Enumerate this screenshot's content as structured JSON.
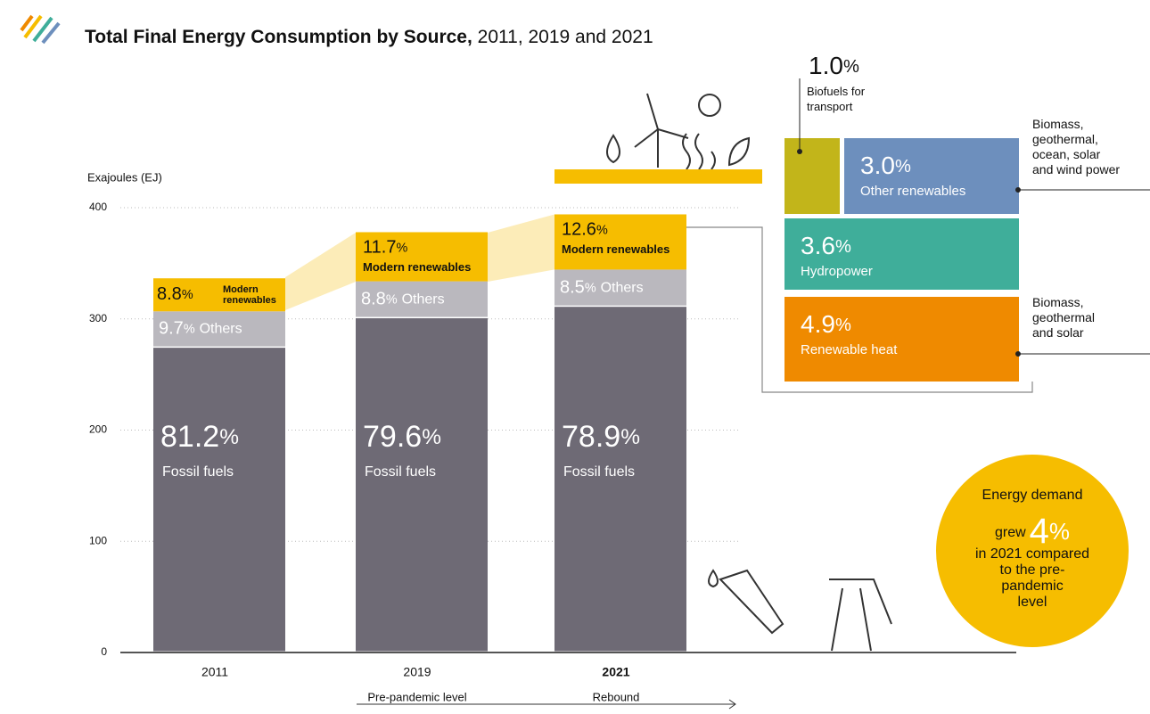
{
  "chart_data": {
    "type": "bar",
    "title": "Total Final Energy Consumption by Source,",
    "title_years": "2011, 2019 and 2021",
    "y_label": "Exajoules (EJ)",
    "unit": "%",
    "categories": [
      "2011",
      "2019",
      "2021"
    ],
    "category_notes": [
      null,
      "Pre-pandemic level",
      "Rebound"
    ],
    "totals": [
      337.5,
      377.6,
      394
    ],
    "series": [
      {
        "name": "Fossil fuels",
        "color": "#6e6a75",
        "values": [
          81.2,
          79.6,
          78.9
        ]
      },
      {
        "name": "Others",
        "color": "#bab8be",
        "values": [
          9.7,
          8.8,
          8.5
        ]
      },
      {
        "name": "Modern renewables",
        "color": "#f6bd00",
        "values": [
          8.8,
          11.7,
          12.6
        ]
      }
    ],
    "ylim": [
      0,
      400
    ],
    "yticks": [
      0,
      100,
      200,
      300,
      400
    ],
    "grid": true,
    "breakdown": [
      {
        "name": "Biofuels for transport",
        "value": 1.0,
        "value_label": "1.0",
        "color": "#c2b51a"
      },
      {
        "name": "Other renewables",
        "value": 3.0,
        "value_label": "3.0",
        "color": "#6d8fbd",
        "note": "Biomass, geothermal, ocean, solar and wind power"
      },
      {
        "name": "Hydropower",
        "value": 3.6,
        "value_label": "3.6",
        "color": "#3fae9a"
      },
      {
        "name": "Renewable heat",
        "value": 4.9,
        "value_label": "4.9",
        "color": "#ef8a00",
        "note": "Biomass, geothermal and solar"
      }
    ],
    "callout": {
      "head": "Energy demand",
      "pre": "grew",
      "value": 4,
      "rest": [
        "in 2021 compared",
        "to the pre-",
        "pandemic",
        "level"
      ]
    }
  }
}
